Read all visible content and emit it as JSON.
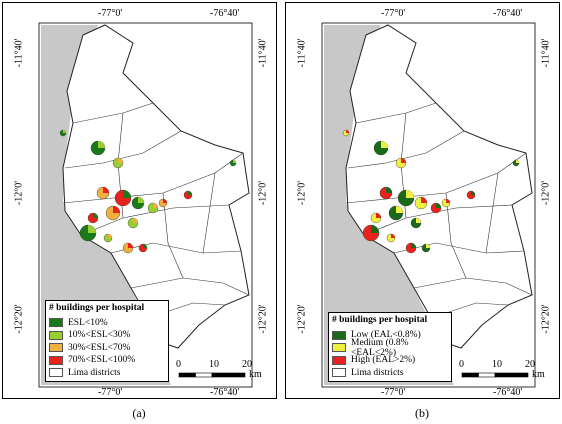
{
  "panels": [
    {
      "caption": "(a)",
      "top_labels": [
        "-77°0'",
        "-76°40'"
      ],
      "bottom_labels": [
        "-77°0'",
        "-76°40'"
      ],
      "left_labels": [
        "-11°40'",
        "-12°0'",
        "-12°20'"
      ],
      "right_labels": [
        "-11°40'",
        "-12°0'",
        "-12°20'"
      ],
      "legend": {
        "title": "# buildings per hospital",
        "items": [
          {
            "label": "ESL<10%",
            "color": "#1a7a1a"
          },
          {
            "label": "10%<ESL<30%",
            "color": "#9acd32"
          },
          {
            "label": "30%<ESL<70%",
            "color": "#f0b040"
          },
          {
            "label": "70%<ESL<100%",
            "color": "#e8231e"
          },
          {
            "label": "Lima districts",
            "color": "#ffffff"
          }
        ]
      },
      "scale": {
        "ticks": [
          0,
          10,
          20
        ],
        "unit": "km"
      }
    },
    {
      "caption": "(b)",
      "top_labels": [
        "-77°0'",
        "-76°40'"
      ],
      "bottom_labels": [
        "-77°0'",
        "-76°40'"
      ],
      "left_labels": [
        "-11°40'",
        "-12°0'",
        "-12°20'"
      ],
      "right_labels": [
        "-11°40'",
        "-12°0'",
        "-12°20'"
      ],
      "legend": {
        "title": "# buildings per hospital",
        "items": [
          {
            "label": "Low (EAL<0.8%)",
            "color": "#1a6a1a"
          },
          {
            "label": "Medium (0.8%<EAL<2%)",
            "color": "#f0f040"
          },
          {
            "label": "High (EAL>2%)",
            "color": "#e8231e"
          },
          {
            "label": "Lima districts",
            "color": "#ffffff"
          }
        ]
      },
      "scale": {
        "ticks": [
          0,
          10,
          20
        ],
        "unit": "km"
      }
    }
  ]
}
